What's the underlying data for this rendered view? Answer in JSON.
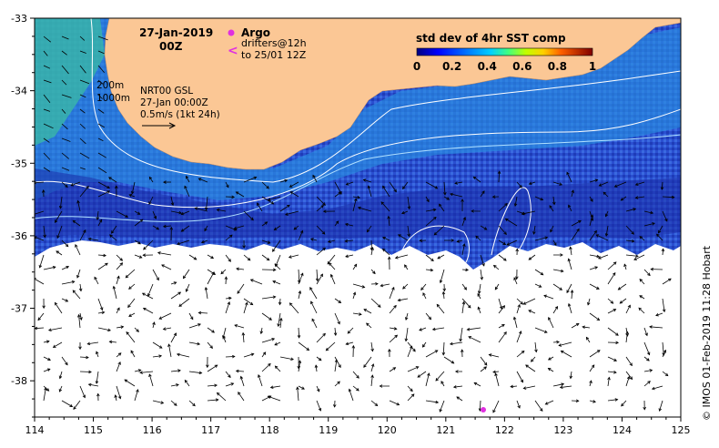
{
  "map": {
    "date": "27-Jan-2019",
    "time": "00Z",
    "argo_label": "Argo",
    "drifters_label_1": "drifters@12h",
    "drifters_label_2": "to 25/01 12Z",
    "colorbar_title": "std dev of 4hr SST comp",
    "colorbar_ticks": [
      "0",
      "0.2",
      "0.4",
      "0.6",
      "0.8",
      "1"
    ],
    "isobath_1": "200m",
    "isobath_2": "1000m",
    "product_1": "NRT00 GSL",
    "product_2": "27-Jan 00:00Z",
    "scale_label": "0.5m/s (1kt 24h)",
    "credit": "© IMOS 01-Feb-2019 11:28 Hobart",
    "x_ticks": [
      "114",
      "115",
      "116",
      "117",
      "118",
      "119",
      "120",
      "121",
      "122",
      "123",
      "124",
      "125"
    ],
    "y_ticks": [
      "-33",
      "-34",
      "-35",
      "-36",
      "-37",
      "-38"
    ],
    "colors": {
      "land": "#fbc795",
      "ocean_white": "#ffffff",
      "argo_marker": "#e030e0",
      "drifter_marker": "#e030e0",
      "contour": "#ffffff"
    }
  },
  "chart_data": {
    "type": "heatmap",
    "x_range": [
      114,
      125
    ],
    "y_range": [
      -38.5,
      -33
    ],
    "colorbar_range": [
      0,
      1
    ],
    "argo_float": {
      "lon": 121.6,
      "lat": -38.4
    }
  }
}
